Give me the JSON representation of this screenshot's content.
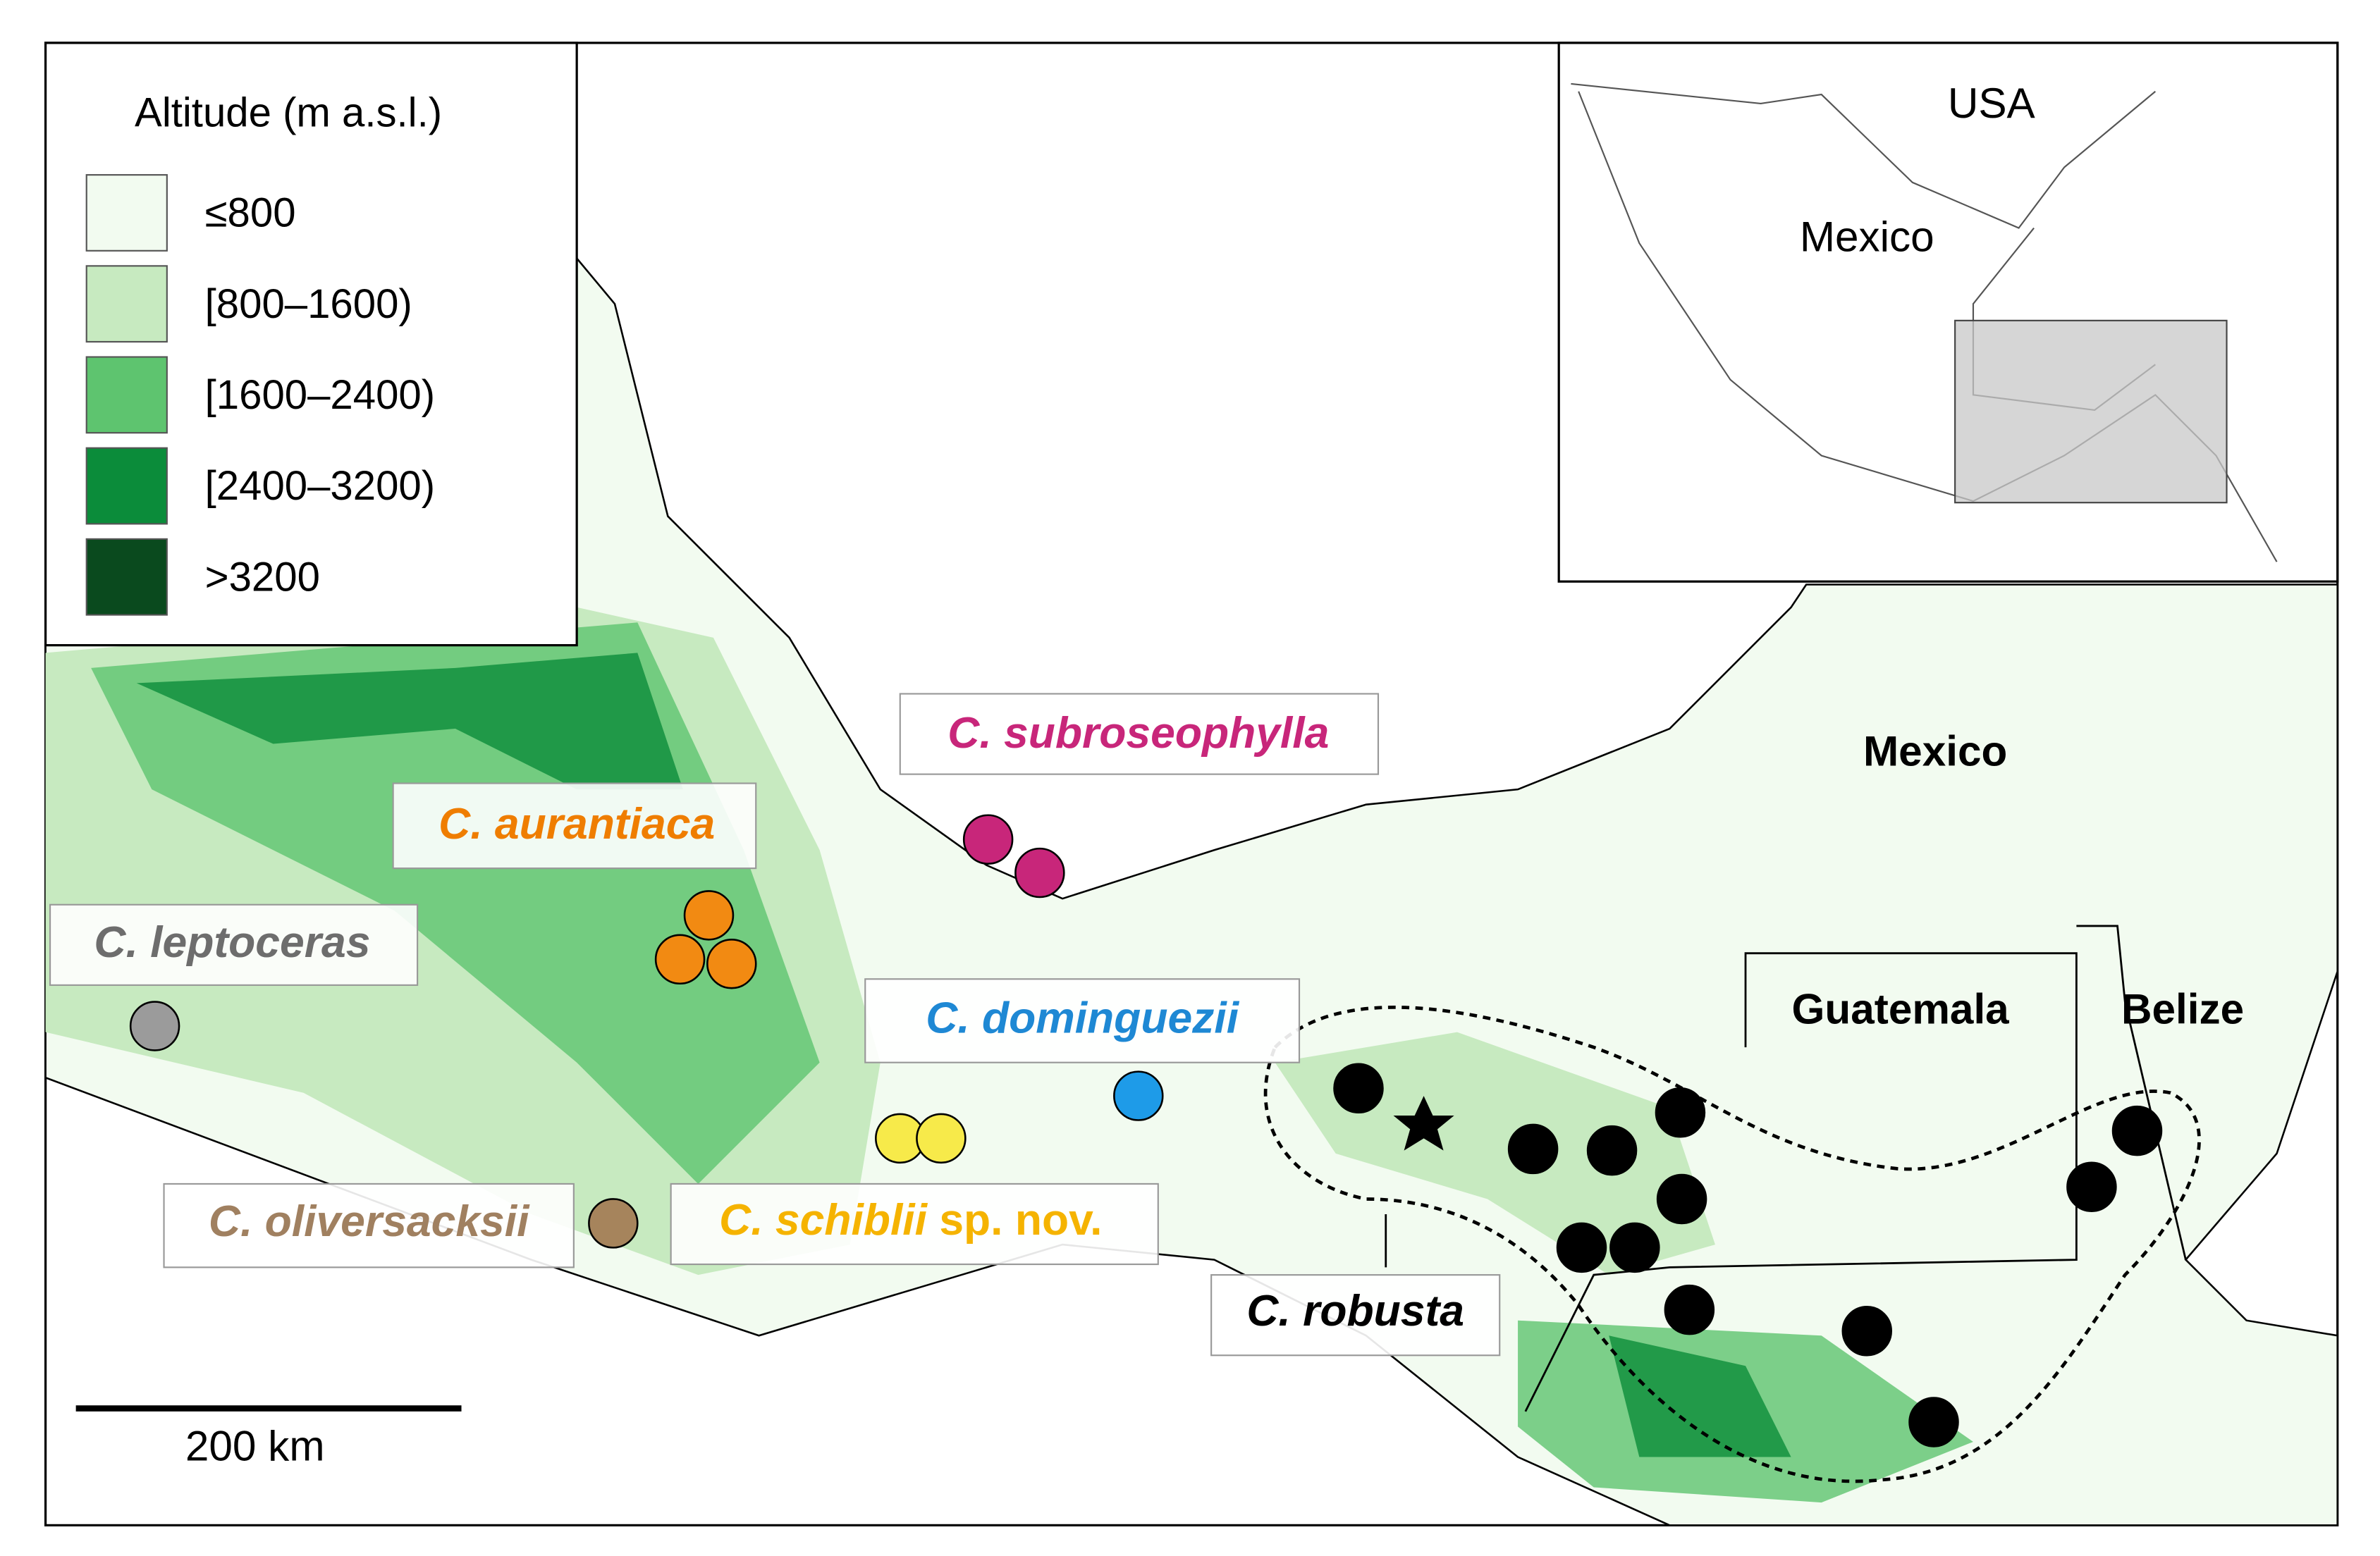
{
  "legend": {
    "title": "Altitude (m a.s.l.)",
    "items": [
      {
        "label": "≤800",
        "color": "#f2fbf0"
      },
      {
        "label": "[800–1600)",
        "color": "#c7eac0"
      },
      {
        "label": "[1600–2400)",
        "color": "#5ec46f"
      },
      {
        "label": "[2400–3200)",
        "color": "#0b8c3a"
      },
      {
        "label": ">3200",
        "color": "#0a4a1e"
      }
    ]
  },
  "species": [
    {
      "name": "C. subroseophylla",
      "color": "#c8267a",
      "dot_color": "#c8267a"
    },
    {
      "name": "C. aurantiaca",
      "color": "#ef7d00",
      "dot_color": "#f28a12"
    },
    {
      "name": "C. leptoceras",
      "color": "#6d6d6d",
      "dot_color": "#9b9b9b"
    },
    {
      "name": "C. dominguezii",
      "color": "#1e88d4",
      "dot_color": "#1e9be8"
    },
    {
      "name": "C. schiblii",
      "suffix": "sp. nov.",
      "color": "#f5b300",
      "dot_color": "#f7ea4a"
    },
    {
      "name": "C. oliversacksii",
      "color": "#a08060",
      "dot_color": "#a6845c"
    },
    {
      "name": "C. robusta",
      "color": "#000000",
      "dot_color": "#000000"
    }
  ],
  "countries": [
    "Mexico",
    "Guatemala",
    "Belize"
  ],
  "inset": {
    "labels": [
      "USA",
      "Mexico"
    ]
  },
  "scale_bar": "200 km"
}
